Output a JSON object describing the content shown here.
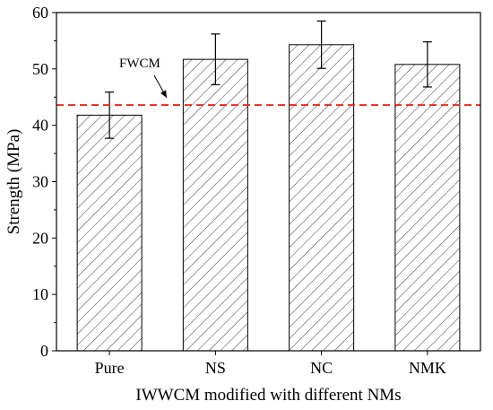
{
  "chart_data": {
    "type": "bar",
    "title": "",
    "xlabel": "IWWCM modified with different NMs",
    "ylabel": "Strength (MPa)",
    "ylim": [
      0,
      60
    ],
    "yticks": [
      0,
      10,
      20,
      30,
      40,
      50,
      60
    ],
    "categories": [
      "Pure",
      "NS",
      "NC",
      "NMK"
    ],
    "values": [
      41.8,
      51.7,
      54.3,
      50.8
    ],
    "errors": [
      4.1,
      4.5,
      4.2,
      4.0
    ],
    "bar_fill": "hatched",
    "reference_line": {
      "label": "FWCM",
      "value": 43.6,
      "color": "#e8291c",
      "style": "dashed"
    },
    "grid": false
  }
}
